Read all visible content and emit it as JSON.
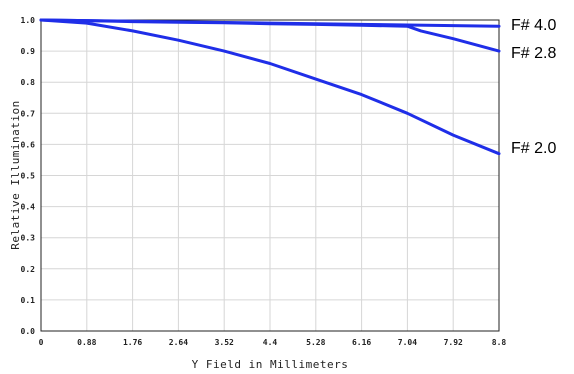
{
  "chart_data": {
    "type": "line",
    "title": "",
    "xlabel": "Y Field in Millimeters",
    "ylabel": "Relative Illumination",
    "xlim": [
      0,
      8.8
    ],
    "ylim": [
      0,
      1.0
    ],
    "x_ticks": [
      "0",
      "0.88",
      "1.76",
      "2.64",
      "3.52",
      "4.4",
      "5.28",
      "6.16",
      "7.04",
      "7.92",
      "8.8"
    ],
    "y_ticks": [
      "0.0",
      "0.1",
      "0.2",
      "0.3",
      "0.4",
      "0.5",
      "0.6",
      "0.7",
      "0.8",
      "0.9",
      "1.0"
    ],
    "grid": true,
    "line_color": "#1f2ee8",
    "series": [
      {
        "name": "F# 4.0",
        "x": [
          0,
          0.88,
          1.76,
          2.64,
          3.52,
          4.4,
          5.28,
          6.16,
          7.04,
          7.92,
          8.8
        ],
        "values": [
          1.0,
          0.998,
          0.996,
          0.994,
          0.992,
          0.99,
          0.988,
          0.986,
          0.984,
          0.982,
          0.98
        ]
      },
      {
        "name": "F# 2.8",
        "x": [
          0,
          0.88,
          1.76,
          2.64,
          3.52,
          4.4,
          5.28,
          6.16,
          7.04,
          7.3,
          7.92,
          8.8
        ],
        "values": [
          1.0,
          0.998,
          0.995,
          0.993,
          0.991,
          0.988,
          0.986,
          0.983,
          0.98,
          0.965,
          0.94,
          0.9
        ]
      },
      {
        "name": "F# 2.0",
        "x": [
          0,
          0.88,
          1.76,
          2.64,
          3.52,
          4.4,
          5.28,
          6.16,
          7.04,
          7.92,
          8.8
        ],
        "values": [
          1.0,
          0.99,
          0.965,
          0.935,
          0.9,
          0.86,
          0.81,
          0.76,
          0.7,
          0.63,
          0.57
        ]
      }
    ]
  }
}
